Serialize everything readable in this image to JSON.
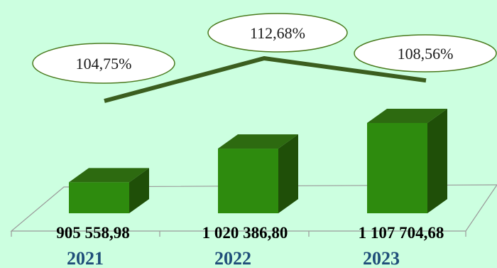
{
  "chart_data": {
    "type": "bar",
    "categories": [
      "2021",
      "2022",
      "2023"
    ],
    "values": [
      905558.98,
      1020386.8,
      1107704.68
    ],
    "value_labels": [
      "905 558,98",
      "1 020 386,80",
      "1 107 704,68"
    ],
    "growth_line": {
      "type": "line",
      "values": [
        104.75,
        112.68,
        108.56
      ],
      "labels": [
        "104,75%",
        "112,68%",
        "108,56%"
      ]
    },
    "grid": false,
    "legend": "none"
  },
  "colors": {
    "background": "#ccffe0",
    "bar_front": "#2e8b0e",
    "bar_top": "#2d6a10",
    "bar_side": "#1f4f08",
    "line": "#3b5e1f",
    "bubble_fill": "#ffffff",
    "bubble_stroke": "#4a7a1e",
    "floor": "#9a9a9a",
    "year_text": "#1f4e79"
  }
}
